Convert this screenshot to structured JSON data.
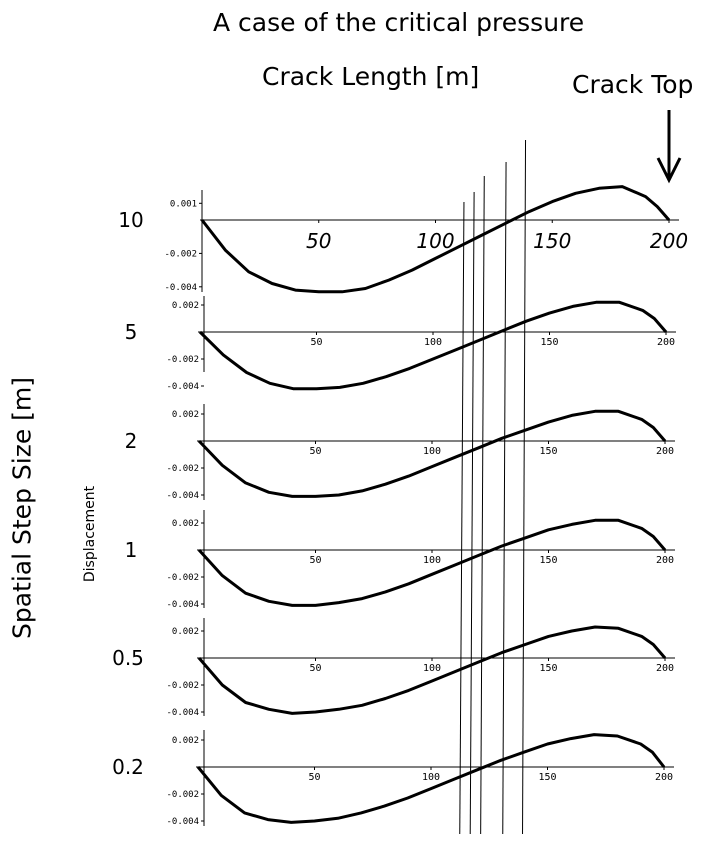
{
  "title": "A case of the critical pressure",
  "xaxis_title": "Crack Length [m]",
  "top_label": "Crack Top",
  "yaxis_title": "Spatial Step Size [m]",
  "displacement_label": "Displacement",
  "chart_data": {
    "type": "line",
    "x_range": [
      0,
      200
    ],
    "x_ticks": [
      "50",
      "100",
      "150",
      "200"
    ],
    "y_ticks": [
      [
        "0.001",
        "-0.002",
        "-0.004"
      ],
      [
        "0.002",
        "-0.002",
        "-0.004"
      ],
      [
        "0.002",
        "-0.002",
        "-0.004"
      ],
      [
        "0.002",
        "-0.002",
        "-0.004"
      ],
      [
        "0.002",
        "-0.002",
        "-0.004"
      ],
      [
        "0.002",
        "-0.002",
        "-0.004"
      ]
    ],
    "vertical_markers": [
      112,
      117,
      122,
      132,
      141
    ],
    "series": [
      {
        "name": "10",
        "x": [
          0,
          10,
          20,
          30,
          40,
          50,
          60,
          70,
          80,
          90,
          100,
          110,
          120,
          130,
          140,
          150,
          160,
          170,
          180,
          190,
          195,
          200
        ],
        "y": [
          0,
          -0.0018,
          -0.0031,
          -0.0038,
          -0.0042,
          -0.0043,
          -0.0043,
          -0.0041,
          -0.0036,
          -0.003,
          -0.0023,
          -0.0016,
          -0.0009,
          -0.0002,
          0.0005,
          0.0011,
          0.0016,
          0.0019,
          0.002,
          0.0014,
          0.0008,
          0
        ]
      },
      {
        "name": "5",
        "x": [
          0,
          10,
          20,
          30,
          40,
          50,
          60,
          70,
          80,
          90,
          100,
          110,
          120,
          130,
          140,
          150,
          160,
          170,
          180,
          190,
          195,
          200
        ],
        "y": [
          0,
          -0.0017,
          -0.003,
          -0.0038,
          -0.0042,
          -0.0042,
          -0.0041,
          -0.0038,
          -0.0033,
          -0.0027,
          -0.002,
          -0.0013,
          -0.0006,
          0.0001,
          0.0008,
          0.0014,
          0.0019,
          0.0022,
          0.0022,
          0.0016,
          0.001,
          0
        ]
      },
      {
        "name": "2",
        "x": [
          0,
          10,
          20,
          30,
          40,
          50,
          60,
          70,
          80,
          90,
          100,
          110,
          120,
          130,
          140,
          150,
          160,
          170,
          180,
          190,
          195,
          200
        ],
        "y": [
          0,
          -0.0018,
          -0.0031,
          -0.0038,
          -0.0041,
          -0.0041,
          -0.004,
          -0.0037,
          -0.0032,
          -0.0026,
          -0.0019,
          -0.0012,
          -0.0005,
          0.0002,
          0.0008,
          0.0014,
          0.0019,
          0.0022,
          0.0022,
          0.0016,
          0.001,
          0
        ]
      },
      {
        "name": "1",
        "x": [
          0,
          10,
          20,
          30,
          40,
          50,
          60,
          70,
          80,
          90,
          100,
          110,
          120,
          130,
          140,
          150,
          160,
          170,
          180,
          190,
          195,
          200
        ],
        "y": [
          0,
          -0.0019,
          -0.0032,
          -0.0038,
          -0.0041,
          -0.0041,
          -0.0039,
          -0.0036,
          -0.0031,
          -0.0025,
          -0.0018,
          -0.0011,
          -0.0004,
          0.0003,
          0.0009,
          0.0015,
          0.0019,
          0.0022,
          0.0022,
          0.0016,
          0.001,
          0
        ]
      },
      {
        "name": "0.5",
        "x": [
          0,
          10,
          20,
          30,
          40,
          50,
          60,
          70,
          80,
          90,
          100,
          110,
          120,
          130,
          140,
          150,
          160,
          170,
          180,
          190,
          195,
          200
        ],
        "y": [
          0,
          -0.002,
          -0.0033,
          -0.0038,
          -0.0041,
          -0.004,
          -0.0038,
          -0.0035,
          -0.003,
          -0.0024,
          -0.0017,
          -0.001,
          -0.0003,
          0.0004,
          0.001,
          0.0016,
          0.002,
          0.0023,
          0.0022,
          0.0016,
          0.001,
          0
        ]
      },
      {
        "name": "0.2",
        "x": [
          0,
          10,
          20,
          30,
          40,
          50,
          60,
          70,
          80,
          90,
          100,
          110,
          120,
          130,
          140,
          150,
          160,
          170,
          180,
          190,
          195,
          200
        ],
        "y": [
          0,
          -0.0021,
          -0.0034,
          -0.0039,
          -0.0041,
          -0.004,
          -0.0038,
          -0.0034,
          -0.0029,
          -0.0023,
          -0.0016,
          -0.0009,
          -0.0002,
          0.0005,
          0.0011,
          0.0017,
          0.0021,
          0.0024,
          0.0023,
          0.0017,
          0.0011,
          0
        ]
      }
    ]
  }
}
